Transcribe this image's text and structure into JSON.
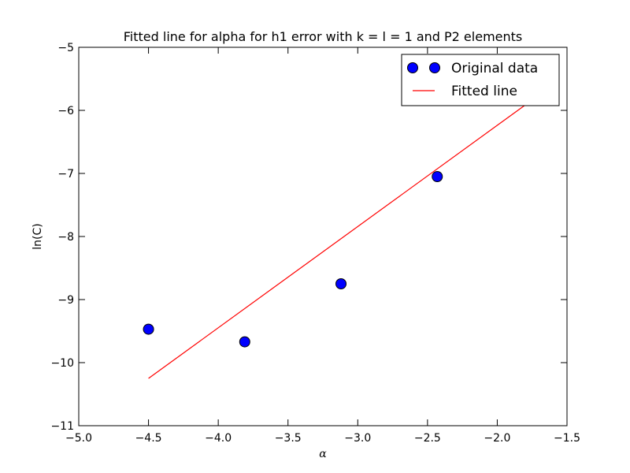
{
  "chart_data": {
    "type": "scatter",
    "title": "Fitted line for alpha for h1 error with k = l = 1 and P2 elements",
    "xlabel": "α",
    "ylabel": "ln(C)",
    "xlim": [
      -5.0,
      -1.5
    ],
    "ylim": [
      -11,
      -5
    ],
    "x_ticks": [
      -5.0,
      -4.5,
      -4.0,
      -3.5,
      -3.0,
      -2.5,
      -2.0,
      -1.5
    ],
    "x_tick_labels": [
      "−5.0",
      "−4.5",
      "−4.0",
      "−3.5",
      "−3.0",
      "−2.5",
      "−2.0",
      "−1.5"
    ],
    "y_ticks": [
      -11,
      -10,
      -9,
      -8,
      -7,
      -6,
      -5
    ],
    "y_tick_labels": [
      "−11",
      "−10",
      "−9",
      "−8",
      "−7",
      "−6",
      "−5"
    ],
    "grid": false,
    "legend_position": "top-right",
    "series": [
      {
        "name": "Original data",
        "kind": "points",
        "color": "#0000ff",
        "x": [
          -4.5,
          -3.81,
          -3.12,
          -2.43
        ],
        "y": [
          -9.47,
          -9.67,
          -8.75,
          -7.05
        ]
      },
      {
        "name": "Fitted line",
        "kind": "line",
        "color": "#ff0000",
        "x": [
          -4.5,
          -1.79
        ],
        "y": [
          -10.25,
          -5.9
        ]
      }
    ]
  }
}
